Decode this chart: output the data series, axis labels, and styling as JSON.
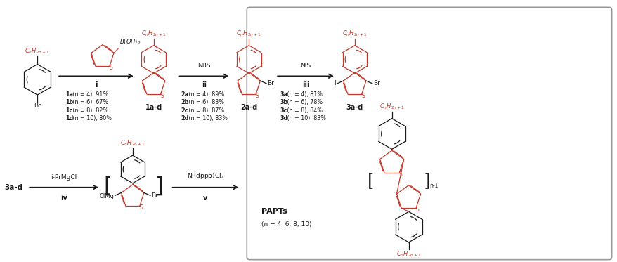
{
  "bg_color": "#ffffff",
  "text_color": "#1a1a1a",
  "red_color": "#c0392b",
  "black": "#000000",
  "gray_border": "#888888",
  "compounds": {
    "1ad_yields": [
      "1a (n = 4), 91%",
      "1b (n = 6), 67%",
      "1c (n = 8), 82%",
      "1d (n = 10), 80%"
    ],
    "2ad_yields": [
      "2a (n = 4), 89%",
      "2b (n = 6), 83%",
      "2c (n = 8), 87%",
      "2d (n = 10), 83%"
    ],
    "3ad_yields": [
      "3a (n = 4), 81%",
      "3b (n = 6), 78%",
      "3c (n = 8), 84%",
      "3d (n = 10), 83%"
    ],
    "papts_sub": "(n = 4, 6, 8, 10)"
  },
  "step1_above": "B(OH)$_2$",
  "step1_label": "i",
  "step2_above": "NBS",
  "step2_label": "ii",
  "step3_above": "NIS",
  "step3_label": "iii",
  "step4_above": "i-PrMgCl",
  "step4_label": "iv",
  "step5_above": "Ni(dppp)Cl$_2$",
  "step5_label": "v",
  "alkyl": "$C_nH_{2n+1}$"
}
